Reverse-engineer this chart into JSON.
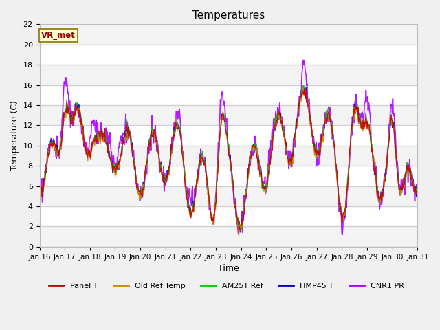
{
  "title": "Temperatures",
  "xlabel": "Time",
  "ylabel": "Temperature (C)",
  "ylim": [
    0,
    22
  ],
  "series_colors": {
    "Panel T": "#cc0000",
    "Old Ref Temp": "#cc8800",
    "AM25T Ref": "#00cc00",
    "HMP45 T": "#0000cc",
    "CNR1 PRT": "#aa00ff"
  },
  "series_order": [
    "CNR1 PRT",
    "HMP45 T",
    "AM25T Ref",
    "Old Ref Temp",
    "Panel T"
  ],
  "legend_order": [
    "Panel T",
    "Old Ref Temp",
    "AM25T Ref",
    "HMP45 T",
    "CNR1 PRT"
  ],
  "annotation": "VR_met",
  "annotation_color": "#8b0000",
  "plot_bg": "#ffffff",
  "fig_bg": "#f0f0f0",
  "n_points": 720,
  "x_tick_labels": [
    "Jan 16",
    "Jan 17",
    "Jan 18",
    "Jan 19",
    "Jan 20",
    "Jan 21",
    "Jan 22",
    "Jan 23",
    "Jan 24",
    "Jan 25",
    "Jan 26",
    "Jan 27",
    "Jan 28",
    "Jan 29",
    "Jan 30",
    "Jan 31"
  ],
  "grid_color": "#d0d0d0",
  "linewidth": 0.8
}
